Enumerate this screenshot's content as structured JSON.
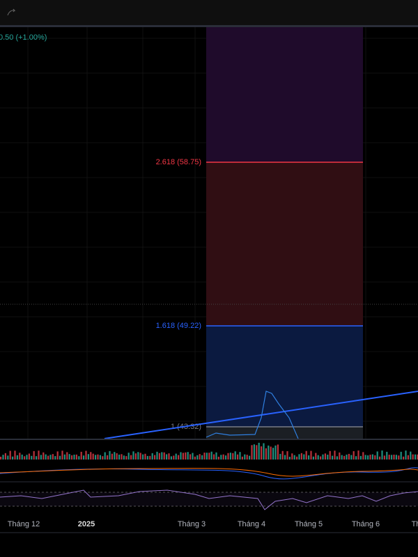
{
  "header": {
    "price_change": "0.50 (+1.00%)"
  },
  "fib_levels": [
    {
      "label": "2.618 (58.75)"
    },
    {
      "label": "1.618 (49.22)"
    },
    {
      "label": "1 (43.32)"
    }
  ],
  "time_axis": [
    "Tháng 12",
    "2025",
    "Tháng 3",
    "Tháng 4",
    "Tháng 5",
    "Tháng 6",
    "Th"
  ]
}
